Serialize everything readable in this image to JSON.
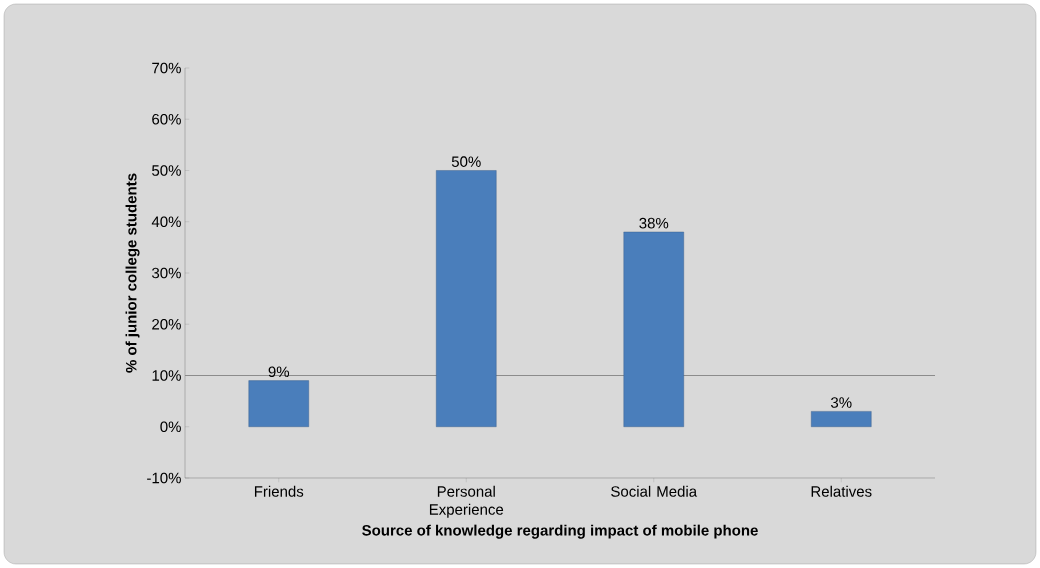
{
  "chart_data": {
    "type": "bar",
    "xlabel": "Source of knowledge regarding impact of mobile phone",
    "ylabel": "% of junior college students",
    "categories": [
      "Friends",
      "Personal Experience",
      "Social Media",
      "Relatives"
    ],
    "values": [
      9,
      50,
      38,
      3
    ],
    "color": "#4a7ebb",
    "value_labels": [
      "9%",
      "50%",
      "38%",
      "3%"
    ],
    "ylim": [
      -10,
      70
    ],
    "yticks": [
      {
        "value": -10,
        "label": "-10%"
      },
      {
        "value": 0,
        "label": "0%"
      },
      {
        "value": 10,
        "label": "10%"
      },
      {
        "value": 20,
        "label": "20%"
      },
      {
        "value": 30,
        "label": "30%"
      },
      {
        "value": 40,
        "label": "40%"
      },
      {
        "value": 50,
        "label": "50%"
      },
      {
        "value": 60,
        "label": "60%"
      },
      {
        "value": 70,
        "label": "70%"
      }
    ],
    "ref_lines": [
      {
        "axis": "y",
        "value": 10,
        "color": "#8c8c8c"
      }
    ],
    "grid": false
  }
}
